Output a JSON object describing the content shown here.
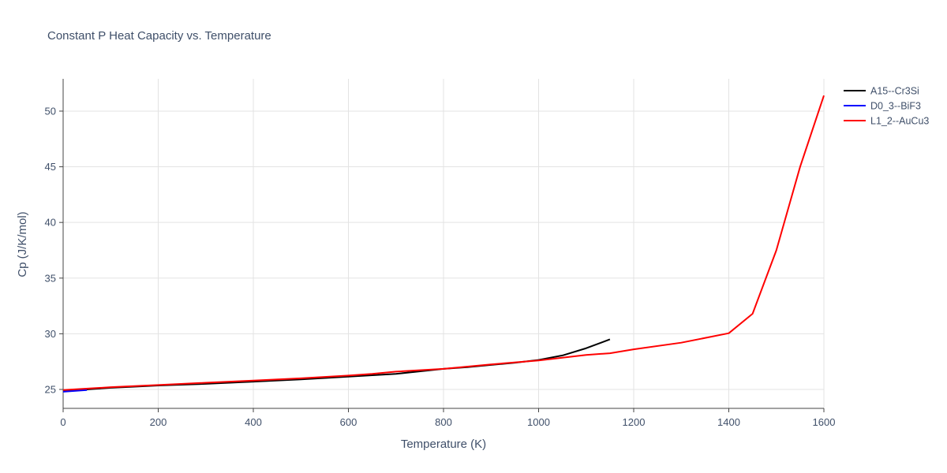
{
  "chart_data": {
    "type": "line",
    "title": "Constant P Heat Capacity vs. Temperature",
    "xlabel": "Temperature (K)",
    "ylabel": "Cp (J/K/mol)",
    "xlim": [
      0,
      1600
    ],
    "ylim": [
      23.3,
      52.9
    ],
    "xticks": [
      0,
      200,
      400,
      600,
      800,
      1000,
      1200,
      1400,
      1600
    ],
    "yticks": [
      25,
      30,
      35,
      40,
      45,
      50
    ],
    "grid": true,
    "legend_position": "top-right",
    "series": [
      {
        "name": "A15--Cr3Si",
        "color": "#000000",
        "x": [
          0,
          50,
          100,
          150,
          200,
          300,
          400,
          500,
          600,
          700,
          800,
          850,
          900,
          950,
          1000,
          1050,
          1100,
          1150
        ],
        "y": [
          24.85,
          25.0,
          25.15,
          25.25,
          25.35,
          25.5,
          25.7,
          25.9,
          26.15,
          26.4,
          26.85,
          27.0,
          27.2,
          27.4,
          27.65,
          28.05,
          28.7,
          29.5
        ]
      },
      {
        "name": "D0_3--BiF3",
        "color": "#0000ff",
        "x": [
          0,
          50
        ],
        "y": [
          24.8,
          24.95
        ]
      },
      {
        "name": "L1_2--AuCu3",
        "color": "#ff0000",
        "x": [
          0,
          100,
          200,
          300,
          400,
          500,
          600,
          650,
          700,
          800,
          900,
          1000,
          1100,
          1150,
          1200,
          1300,
          1400,
          1450,
          1500,
          1550,
          1600
        ],
        "y": [
          24.95,
          25.2,
          25.4,
          25.6,
          25.8,
          26.0,
          26.25,
          26.4,
          26.6,
          26.85,
          27.25,
          27.6,
          28.1,
          28.25,
          28.6,
          29.2,
          30.05,
          31.8,
          37.5,
          45.0,
          51.4
        ]
      }
    ]
  }
}
